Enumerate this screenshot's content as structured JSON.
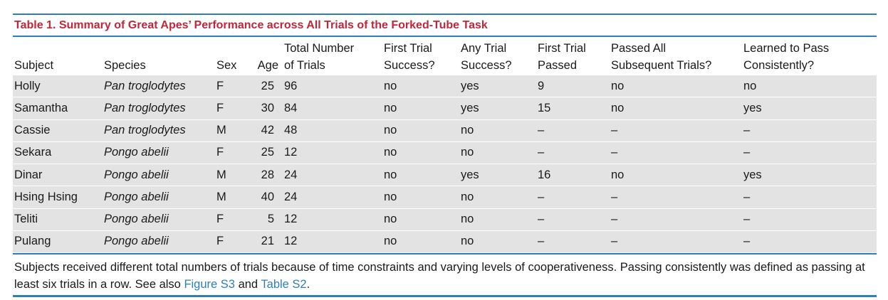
{
  "caption": "Table 1.  Summary of Great Apes’ Performance across All Trials of the Forked-Tube Task",
  "columns": [
    {
      "line1": "",
      "line2": "Subject"
    },
    {
      "line1": "",
      "line2": "Species"
    },
    {
      "line1": "",
      "line2": "Sex"
    },
    {
      "line1": "",
      "line2": "Age"
    },
    {
      "line1": "Total Number",
      "line2": "of Trials"
    },
    {
      "line1": "First Trial",
      "line2": "Success?"
    },
    {
      "line1": "Any Trial",
      "line2": "Success?"
    },
    {
      "line1": "First Trial",
      "line2": "Passed"
    },
    {
      "line1": "Passed All",
      "line2": "Subsequent Trials?"
    },
    {
      "line1": "Learned to Pass",
      "line2": "Consistently?"
    }
  ],
  "rows": [
    [
      "Holly",
      "Pan troglodytes",
      "F",
      "25",
      "96",
      "no",
      "yes",
      "9",
      "no",
      "no"
    ],
    [
      "Samantha",
      "Pan troglodytes",
      "F",
      "30",
      "84",
      "no",
      "yes",
      "15",
      "no",
      "yes"
    ],
    [
      "Cassie",
      "Pan troglodytes",
      "M",
      "42",
      "48",
      "no",
      "no",
      "–",
      "–",
      "–"
    ],
    [
      "Sekara",
      "Pongo abelii",
      "F",
      "25",
      "12",
      "no",
      "no",
      "–",
      "–",
      "–"
    ],
    [
      "Dinar",
      "Pongo abelii",
      "M",
      "28",
      "24",
      "no",
      "yes",
      "16",
      "no",
      "yes"
    ],
    [
      "Hsing Hsing",
      "Pongo abelii",
      "M",
      "40",
      "24",
      "no",
      "no",
      "–",
      "–",
      "–"
    ],
    [
      "Teliti",
      "Pongo abelii",
      "F",
      "5",
      "12",
      "no",
      "no",
      "–",
      "–",
      "–"
    ],
    [
      "Pulang",
      "Pongo abelii",
      "F",
      "21",
      "12",
      "no",
      "no",
      "–",
      "–",
      "–"
    ]
  ],
  "footnote": {
    "text1": "Subjects received different total numbers of trials because of time constraints and varying levels of cooperativeness. Passing consistently was defined as passing at least six trials in a row. See also ",
    "link1": "Figure S3",
    "text2": " and ",
    "link2": "Table S2",
    "text3": "."
  },
  "colors": {
    "accent": "#2e7fb8",
    "caption": "#c0283a",
    "row_shade": "#e3e3e3"
  }
}
